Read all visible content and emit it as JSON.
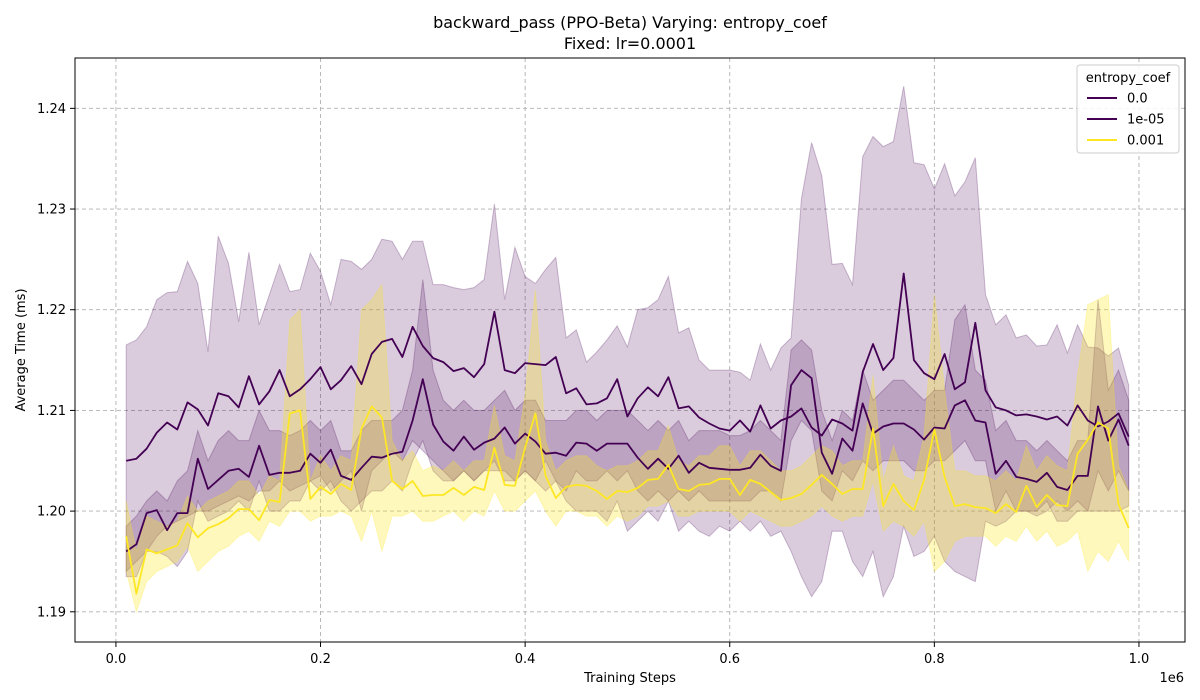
{
  "chart_data": {
    "type": "line",
    "title": "backward_pass (PPO-Beta) Varying: entropy_coef",
    "subtitle": "Fixed: lr=0.0001",
    "xlabel": "Training Steps",
    "ylabel": "Average Time (ms)",
    "x_offset_label": "1e6",
    "xlim": [
      -0.04,
      1.045
    ],
    "ylim": [
      1.187,
      1.245
    ],
    "x_ticks": [
      0.0,
      0.2,
      0.4,
      0.6,
      0.8,
      1.0
    ],
    "x_tick_labels": [
      "0.0",
      "0.2",
      "0.4",
      "0.6",
      "0.8",
      "1.0"
    ],
    "y_ticks": [
      1.19,
      1.2,
      1.21,
      1.22,
      1.23,
      1.24
    ],
    "y_tick_labels": [
      "1.19",
      "1.20",
      "1.21",
      "1.22",
      "1.23",
      "1.24"
    ],
    "grid": true,
    "legend": {
      "title": "entropy_coef",
      "position": "top-right"
    },
    "x": [
      0.01,
      0.02,
      0.03,
      0.04,
      0.05,
      0.06,
      0.07,
      0.08,
      0.09,
      0.1,
      0.11,
      0.12,
      0.13,
      0.14,
      0.15,
      0.16,
      0.17,
      0.18,
      0.19,
      0.2,
      0.21,
      0.22,
      0.23,
      0.24,
      0.25,
      0.26,
      0.27,
      0.28,
      0.29,
      0.3,
      0.31,
      0.32,
      0.33,
      0.34,
      0.35,
      0.36,
      0.37,
      0.38,
      0.39,
      0.4,
      0.41,
      0.42,
      0.43,
      0.44,
      0.45,
      0.46,
      0.47,
      0.48,
      0.49,
      0.5,
      0.51,
      0.52,
      0.53,
      0.54,
      0.55,
      0.56,
      0.57,
      0.58,
      0.59,
      0.6,
      0.61,
      0.62,
      0.63,
      0.64,
      0.65,
      0.66,
      0.67,
      0.68,
      0.69,
      0.7,
      0.71,
      0.72,
      0.73,
      0.74,
      0.75,
      0.76,
      0.77,
      0.78,
      0.79,
      0.8,
      0.81,
      0.82,
      0.83,
      0.84,
      0.85,
      0.86,
      0.87,
      0.88,
      0.89,
      0.9,
      0.91,
      0.92,
      0.93,
      0.94,
      0.95,
      0.96,
      0.97,
      0.98,
      0.99
    ],
    "series": [
      {
        "name": "0.0",
        "color": "#440154",
        "band_color": "#440154",
        "band_opacity": 0.2,
        "values": [
          1.205,
          1.2052,
          1.2062,
          1.2078,
          1.2088,
          1.2081,
          1.2108,
          1.2101,
          1.2085,
          1.2117,
          1.2114,
          1.2103,
          1.2134,
          1.2106,
          1.2119,
          1.214,
          1.2114,
          1.2121,
          1.2131,
          1.2143,
          1.2121,
          1.213,
          1.2144,
          1.2126,
          1.2156,
          1.2168,
          1.2171,
          1.2153,
          1.2183,
          1.2164,
          1.2152,
          1.2148,
          1.2139,
          1.2142,
          1.2133,
          1.2146,
          1.2198,
          1.214,
          1.2137,
          1.2147,
          1.2146,
          1.2145,
          1.2153,
          1.2117,
          1.2122,
          1.2106,
          1.2107,
          1.2112,
          1.2131,
          1.2094,
          1.2112,
          1.2123,
          1.2114,
          1.2133,
          1.2102,
          1.2104,
          1.2093,
          1.2087,
          1.2082,
          1.208,
          1.209,
          1.2079,
          1.2105,
          1.2082,
          1.209,
          1.2094,
          1.2102,
          1.2083,
          1.2075,
          1.2091,
          1.2087,
          1.208,
          1.2138,
          1.2166,
          1.214,
          1.2152,
          1.2236,
          1.215,
          1.2137,
          1.2131,
          1.2156,
          1.2121,
          1.2128,
          1.2187,
          1.212,
          1.2103,
          1.21,
          1.2095,
          1.2096,
          1.2094,
          1.2091,
          1.2094,
          1.2085,
          1.2105,
          1.209,
          1.2084,
          1.2089,
          1.2097,
          1.2074
        ],
        "lower": [
          1.194,
          1.195,
          1.196,
          1.1975,
          1.1985,
          1.199,
          1.1995,
          1.2,
          1.2,
          1.2005,
          1.201,
          1.2015,
          1.201,
          1.202,
          1.202,
          1.203,
          1.202,
          1.2025,
          1.203,
          1.2035,
          1.202,
          1.203,
          1.204,
          1.2,
          1.204,
          1.205,
          1.206,
          1.205,
          1.207,
          1.206,
          1.205,
          1.204,
          1.203,
          1.204,
          1.203,
          1.204,
          1.205,
          1.203,
          1.203,
          1.204,
          1.203,
          1.205,
          1.203,
          1.201,
          1.2,
          1.2,
          1.2,
          1.199,
          1.201,
          1.198,
          1.199,
          1.2,
          1.199,
          1.201,
          1.198,
          1.199,
          1.198,
          1.1975,
          1.1985,
          1.198,
          1.199,
          1.198,
          1.199,
          1.1975,
          1.198,
          1.196,
          1.1935,
          1.1915,
          1.193,
          1.198,
          1.198,
          1.195,
          1.1935,
          1.196,
          1.1915,
          1.1935,
          1.1985,
          1.1955,
          1.196,
          1.1975,
          1.195,
          1.194,
          1.1935,
          1.193,
          1.199,
          1.1985,
          1.199,
          1.2,
          1.2,
          1.1995,
          1.2,
          1.201,
          1.2,
          1.201,
          1.2,
          1.2,
          1.2,
          1.2,
          1.2005
        ],
        "upper": [
          1.2165,
          1.217,
          1.2183,
          1.221,
          1.2217,
          1.2218,
          1.2248,
          1.2226,
          1.2158,
          1.2273,
          1.2246,
          1.2188,
          1.2257,
          1.2185,
          1.2215,
          1.2245,
          1.2218,
          1.222,
          1.2256,
          1.2238,
          1.2205,
          1.225,
          1.2248,
          1.224,
          1.225,
          1.227,
          1.2268,
          1.225,
          1.2268,
          1.2268,
          1.2225,
          1.2225,
          1.2222,
          1.222,
          1.2222,
          1.223,
          1.2305,
          1.221,
          1.2262,
          1.2233,
          1.2226,
          1.224,
          1.2252,
          1.2172,
          1.218,
          1.2148,
          1.2158,
          1.217,
          1.2184,
          1.2163,
          1.22,
          1.2202,
          1.221,
          1.2233,
          1.2177,
          1.2182,
          1.215,
          1.214,
          1.214,
          1.214,
          1.2138,
          1.213,
          1.2166,
          1.214,
          1.2162,
          1.2172,
          1.231,
          1.2366,
          1.2333,
          1.2245,
          1.2246,
          1.2225,
          1.2352,
          1.2372,
          1.2362,
          1.2367,
          1.2422,
          1.2346,
          1.2344,
          1.232,
          1.2345,
          1.2313,
          1.2327,
          1.2351,
          1.2215,
          1.2185,
          1.2195,
          1.2172,
          1.2175,
          1.2164,
          1.2165,
          1.2185,
          1.2157,
          1.2185,
          1.2163,
          1.2162,
          1.2154,
          1.2162,
          1.2125
        ]
      },
      {
        "name": "1e-05",
        "color": "#440154",
        "band_color": "#440154",
        "band_opacity": 0.2,
        "values": [
          1.196,
          1.1967,
          1.1998,
          1.2001,
          1.1981,
          1.1998,
          1.1998,
          1.2052,
          1.2022,
          1.2031,
          1.204,
          1.2042,
          1.2034,
          1.2065,
          1.2036,
          1.2038,
          1.2038,
          1.204,
          1.2057,
          1.2048,
          1.2061,
          1.2035,
          1.2031,
          1.2043,
          1.2054,
          1.2053,
          1.2057,
          1.2059,
          1.209,
          1.2131,
          1.2086,
          1.2069,
          1.206,
          1.2074,
          1.2061,
          1.2068,
          1.2072,
          1.2083,
          1.2067,
          1.2077,
          1.2069,
          1.2057,
          1.2058,
          1.2055,
          1.2068,
          1.2067,
          1.206,
          1.2067,
          1.2067,
          1.2067,
          1.2053,
          1.2042,
          1.2052,
          1.2042,
          1.2055,
          1.2038,
          1.2048,
          1.2043,
          1.2042,
          1.2041,
          1.2041,
          1.2043,
          1.2056,
          1.2045,
          1.204,
          1.2125,
          1.214,
          1.2132,
          1.2058,
          1.2037,
          1.2072,
          1.206,
          1.2107,
          1.2077,
          1.2084,
          1.2087,
          1.2087,
          1.2081,
          1.2071,
          1.2083,
          1.2082,
          1.2105,
          1.211,
          1.209,
          1.2088,
          1.2037,
          1.205,
          1.2034,
          1.2032,
          1.2029,
          1.2038,
          1.2024,
          1.2021,
          1.2035,
          1.2035,
          1.2104,
          1.207,
          1.2091,
          1.2065
        ],
        "lower": [
          1.1935,
          1.1935,
          1.196,
          1.196,
          1.1955,
          1.1945,
          1.196,
          1.201,
          1.199,
          1.1995,
          1.2,
          1.201,
          1.2,
          1.203,
          1.2,
          1.2,
          1.201,
          1.201,
          1.203,
          1.202,
          1.203,
          1.201,
          1.2,
          1.201,
          1.202,
          1.202,
          1.203,
          1.202,
          1.205,
          1.207,
          1.204,
          1.203,
          1.203,
          1.204,
          1.203,
          1.204,
          1.204,
          1.204,
          1.203,
          1.204,
          1.203,
          1.202,
          1.203,
          1.202,
          1.204,
          1.203,
          1.203,
          1.204,
          1.203,
          1.204,
          1.202,
          1.201,
          1.202,
          1.201,
          1.202,
          1.201,
          1.202,
          1.201,
          1.201,
          1.201,
          1.201,
          1.201,
          1.202,
          1.202,
          1.201,
          1.207,
          1.209,
          1.208,
          1.202,
          1.201,
          1.204,
          1.203,
          1.205,
          1.204,
          1.205,
          1.205,
          1.205,
          1.204,
          1.204,
          1.205,
          1.205,
          1.206,
          1.207,
          1.205,
          1.205,
          1.2,
          1.202,
          1.2,
          1.2,
          1.2,
          1.201,
          1.199,
          1.199,
          1.2,
          1.2,
          1.204,
          1.202,
          1.204,
          1.202
        ],
        "upper": [
          1.1985,
          1.1995,
          1.201,
          1.202,
          1.201,
          1.203,
          1.204,
          1.208,
          1.205,
          1.207,
          1.208,
          1.207,
          1.207,
          1.21,
          1.208,
          1.208,
          1.2075,
          1.208,
          1.209,
          1.208,
          1.209,
          1.206,
          1.206,
          1.208,
          1.209,
          1.209,
          1.209,
          1.21,
          1.214,
          1.223,
          1.214,
          1.211,
          1.21,
          1.211,
          1.21,
          1.21,
          1.211,
          1.212,
          1.21,
          1.211,
          1.211,
          1.209,
          1.209,
          1.209,
          1.21,
          1.21,
          1.209,
          1.21,
          1.21,
          1.21,
          1.209,
          1.208,
          1.209,
          1.208,
          1.209,
          1.207,
          1.208,
          1.208,
          1.208,
          1.2075,
          1.2075,
          1.208,
          1.209,
          1.208,
          1.207,
          1.216,
          1.217,
          1.216,
          1.21,
          1.207,
          1.21,
          1.209,
          1.214,
          1.211,
          1.212,
          1.213,
          1.213,
          1.212,
          1.211,
          1.212,
          1.212,
          1.219,
          1.2205,
          1.214,
          1.213,
          1.208,
          1.209,
          1.207,
          1.207,
          1.206,
          1.207,
          1.206,
          1.205,
          1.207,
          1.207,
          1.221,
          1.212,
          1.214,
          1.211
        ]
      },
      {
        "name": "0.001",
        "color": "#fde725",
        "band_color": "#fde725",
        "band_opacity": 0.3,
        "values": [
          1.1975,
          1.1918,
          1.1962,
          1.1958,
          1.1962,
          1.1966,
          1.1988,
          1.1974,
          1.1983,
          1.1987,
          1.1993,
          1.2002,
          1.2002,
          1.1991,
          1.2011,
          1.2009,
          1.2097,
          1.21,
          1.2012,
          1.2024,
          1.2017,
          1.2027,
          1.2021,
          1.2082,
          1.2104,
          1.2093,
          1.203,
          1.2022,
          1.203,
          1.2015,
          1.2016,
          1.2016,
          1.2023,
          1.2016,
          1.2024,
          1.2021,
          1.2063,
          1.2026,
          1.2025,
          1.2063,
          1.2097,
          1.2035,
          1.2013,
          1.2024,
          1.2026,
          1.2025,
          1.202,
          1.2012,
          1.202,
          1.2019,
          1.2023,
          1.2031,
          1.2032,
          1.2046,
          1.2022,
          1.202,
          1.2026,
          1.2027,
          1.2032,
          1.2032,
          1.2016,
          1.2031,
          1.2027,
          1.2019,
          1.2011,
          1.2013,
          1.2017,
          1.2026,
          1.2036,
          1.2027,
          1.2017,
          1.2022,
          1.2022,
          1.2082,
          1.2005,
          1.2027,
          1.201,
          1.2001,
          1.2031,
          1.2081,
          1.2034,
          1.2005,
          1.2007,
          1.2004,
          1.2003,
          1.1998,
          1.2007,
          1.1999,
          1.2025,
          1.2004,
          1.2016,
          1.2006,
          1.2005,
          1.2057,
          1.2071,
          1.2088,
          1.2082,
          1.2007,
          1.1983
        ],
        "lower": [
          1.194,
          1.19,
          1.193,
          1.194,
          1.1945,
          1.195,
          1.1965,
          1.194,
          1.195,
          1.196,
          1.1965,
          1.1975,
          1.198,
          1.197,
          1.199,
          1.1985,
          1.2,
          1.2,
          1.199,
          1.1995,
          1.1995,
          1.2,
          1.1995,
          1.197,
          1.2,
          1.196,
          1.1995,
          1.1995,
          1.2,
          1.199,
          1.199,
          1.1995,
          1.2,
          1.199,
          1.2,
          1.1995,
          1.202,
          1.2,
          1.2,
          1.201,
          1.202,
          1.2,
          1.1985,
          1.2,
          1.2,
          1.1995,
          1.1995,
          1.1985,
          1.1995,
          1.199,
          1.1995,
          1.2005,
          1.2005,
          1.201,
          1.1995,
          1.1995,
          1.2,
          1.2,
          1.2,
          1.2,
          1.199,
          1.2,
          1.1995,
          1.199,
          1.1985,
          1.1985,
          1.199,
          1.1995,
          1.2005,
          1.1995,
          1.199,
          1.1995,
          1.1995,
          1.203,
          1.198,
          1.199,
          1.1985,
          1.1975,
          1.199,
          1.194,
          1.195,
          1.197,
          1.1975,
          1.1975,
          1.1975,
          1.1965,
          1.1975,
          1.197,
          1.1985,
          1.197,
          1.198,
          1.1965,
          1.197,
          1.198,
          1.194,
          1.196,
          1.195,
          1.197,
          1.195
        ],
        "upper": [
          1.201,
          1.196,
          1.1995,
          1.199,
          1.1985,
          1.199,
          1.2015,
          1.2,
          1.201,
          1.2015,
          1.202,
          1.203,
          1.203,
          1.2015,
          1.2035,
          1.203,
          1.219,
          1.22,
          1.203,
          1.2055,
          1.204,
          1.2055,
          1.205,
          1.22,
          1.221,
          1.2225,
          1.207,
          1.205,
          1.206,
          1.204,
          1.2045,
          1.204,
          1.205,
          1.204,
          1.205,
          1.205,
          1.2105,
          1.2055,
          1.205,
          1.2115,
          1.222,
          1.207,
          1.204,
          1.205,
          1.2055,
          1.2055,
          1.2045,
          1.204,
          1.2045,
          1.2045,
          1.205,
          1.206,
          1.206,
          1.2085,
          1.205,
          1.2045,
          1.2055,
          1.2055,
          1.2065,
          1.2065,
          1.2045,
          1.206,
          1.206,
          1.205,
          1.204,
          1.204,
          1.2045,
          1.2055,
          1.2065,
          1.206,
          1.2045,
          1.205,
          1.205,
          1.2135,
          1.203,
          1.2065,
          1.2035,
          1.203,
          1.2075,
          1.2215,
          1.212,
          1.204,
          1.204,
          1.2035,
          1.2035,
          1.203,
          1.204,
          1.203,
          1.2065,
          1.204,
          1.2055,
          1.2045,
          1.204,
          1.2135,
          1.2205,
          1.221,
          1.2215,
          1.2045,
          1.202
        ]
      }
    ]
  }
}
